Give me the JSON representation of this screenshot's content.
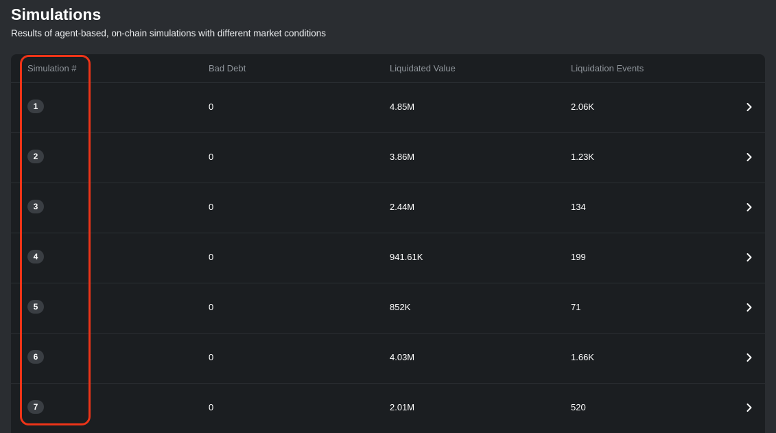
{
  "page": {
    "title": "Simulations",
    "subtitle": "Results of agent-based, on-chain simulations with different market conditions"
  },
  "table": {
    "columns": [
      "Simulation #",
      "Bad Debt",
      "Liquidated Value",
      "Liquidation Events"
    ],
    "rows": [
      {
        "sim": "1",
        "bad_debt": "0",
        "liquidated_value": "4.85M",
        "liquidation_events": "2.06K"
      },
      {
        "sim": "2",
        "bad_debt": "0",
        "liquidated_value": "3.86M",
        "liquidation_events": "1.23K"
      },
      {
        "sim": "3",
        "bad_debt": "0",
        "liquidated_value": "2.44M",
        "liquidation_events": "134"
      },
      {
        "sim": "4",
        "bad_debt": "0",
        "liquidated_value": "941.61K",
        "liquidation_events": "199"
      },
      {
        "sim": "5",
        "bad_debt": "0",
        "liquidated_value": "852K",
        "liquidation_events": "71"
      },
      {
        "sim": "6",
        "bad_debt": "0",
        "liquidated_value": "4.03M",
        "liquidation_events": "1.66K"
      },
      {
        "sim": "7",
        "bad_debt": "0",
        "liquidated_value": "2.01M",
        "liquidation_events": "520"
      }
    ],
    "row_icon": "chevron-right-icon"
  },
  "annotation": {
    "highlight_color": "#ee3418"
  }
}
